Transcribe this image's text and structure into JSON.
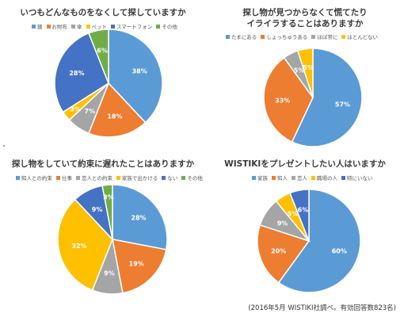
{
  "chart_data": [
    {
      "type": "pie",
      "title": "いつもどんなものをなくして探していますか",
      "categories": [
        "鍵",
        "お財布",
        "傘",
        "ペット",
        "スマートフォン",
        "その他"
      ],
      "values": [
        38,
        18,
        7,
        3,
        28,
        6
      ],
      "labels": [
        "38%",
        "18%",
        "7%",
        "3%",
        "28%",
        "6%"
      ],
      "colors": [
        "#5b9bd5",
        "#ed7d31",
        "#a5a5a5",
        "#ffc000",
        "#4472c4",
        "#70ad47"
      ],
      "legend_position": "top"
    },
    {
      "type": "pie",
      "title": "探し物が見つからなくて慌てたり\nイライラすることはありますか",
      "categories": [
        "たまにある",
        "しょっちゅうある",
        "ほぼ常に",
        "ほとんどない"
      ],
      "values": [
        57,
        33,
        5,
        5
      ],
      "labels": [
        "57%",
        "33%",
        "5%",
        "5%"
      ],
      "colors": [
        "#5b9bd5",
        "#ed7d31",
        "#a5a5a5",
        "#ffc000"
      ],
      "legend_position": "top"
    },
    {
      "type": "pie",
      "title": "探し物をしていて約束に遅れたことはありますか",
      "categories": [
        "知人との約束",
        "仕事",
        "恋人との約束",
        "家族で出かける",
        "ない",
        "その他"
      ],
      "values": [
        28,
        19,
        9,
        32,
        9,
        3
      ],
      "labels": [
        "28%",
        "19%",
        "9%",
        "32%",
        "9%",
        "3%"
      ],
      "colors": [
        "#5b9bd5",
        "#ed7d31",
        "#a5a5a5",
        "#ffc000",
        "#4472c4",
        "#70ad47"
      ],
      "legend_position": "top"
    },
    {
      "type": "pie",
      "title": "WISTIKIをプレゼントしたい人はいますか",
      "categories": [
        "家族",
        "知人",
        "恋人",
        "職場の人",
        "特にいない"
      ],
      "values": [
        60,
        20,
        9,
        5,
        6
      ],
      "labels": [
        "60%",
        "20%",
        "9%",
        "5%",
        "6%"
      ],
      "colors": [
        "#5b9bd5",
        "#ed7d31",
        "#a5a5a5",
        "#ffc000",
        "#4472c4"
      ],
      "legend_position": "top"
    }
  ],
  "source_note": "(2016年5月 WISTIKI社調べ。有効回答数823名)"
}
